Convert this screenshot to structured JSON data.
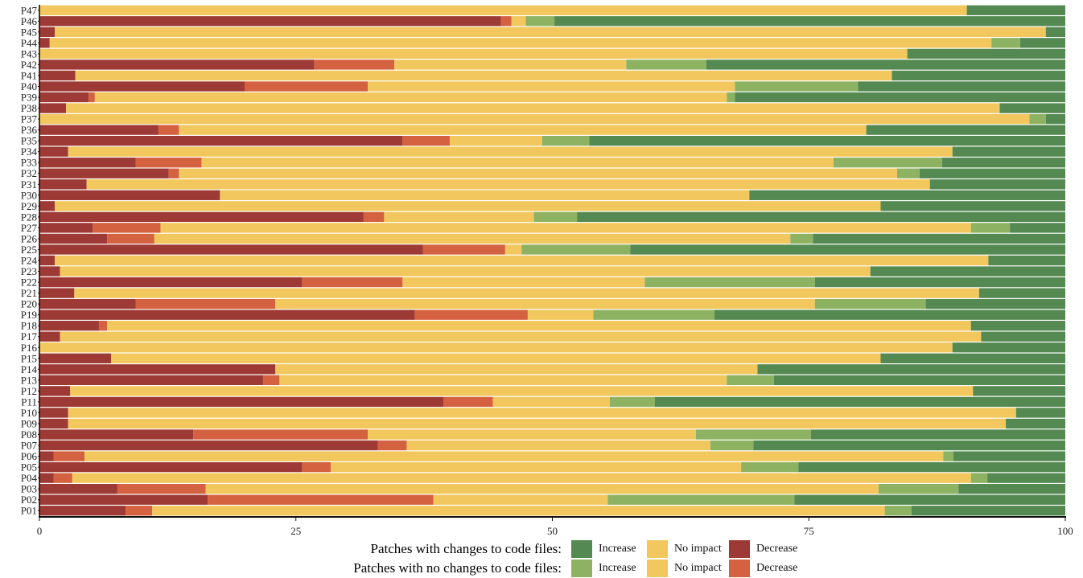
{
  "chart_data": {
    "type": "bar",
    "orientation": "horizontal",
    "stacked": true,
    "xlim": [
      0,
      100
    ],
    "x_ticks": [
      "0",
      "25",
      "50",
      "75",
      "100"
    ],
    "categories": [
      "P01",
      "P02",
      "P03",
      "P04",
      "P05",
      "P06",
      "P07",
      "P08",
      "P09",
      "P10",
      "P11",
      "P12",
      "P13",
      "P14",
      "P15",
      "P16",
      "P17",
      "P18",
      "P19",
      "P20",
      "P21",
      "P22",
      "P23",
      "P24",
      "P25",
      "P26",
      "P27",
      "P28",
      "P29",
      "P30",
      "P31",
      "P32",
      "P33",
      "P34",
      "P35",
      "P36",
      "P37",
      "P38",
      "P39",
      "P40",
      "P41",
      "P42",
      "P43",
      "P44",
      "P45",
      "P46",
      "P47"
    ],
    "series": [
      {
        "name": "Decrease",
        "group": "code",
        "color": "#9e3a35",
        "values": [
          8.4,
          16.4,
          7.6,
          1.4,
          25.6,
          1.4,
          33.0,
          15.0,
          2.8,
          2.8,
          39.4,
          3.0,
          21.8,
          23.0,
          7.0,
          0.0,
          2.0,
          5.8,
          36.6,
          9.4,
          3.4,
          25.6,
          2.0,
          1.5,
          37.4,
          6.6,
          5.2,
          31.6,
          1.5,
          17.6,
          4.6,
          12.6,
          9.4,
          2.8,
          35.4,
          11.6,
          0.0,
          2.6,
          4.8,
          20.0,
          3.5,
          26.8,
          0.0,
          1.0,
          1.5,
          45.0,
          0.0
        ]
      },
      {
        "name": "Decrease",
        "group": "nocode",
        "color": "#d4613f",
        "values": [
          2.6,
          22.0,
          8.6,
          1.8,
          2.8,
          3.0,
          2.8,
          17.0,
          0.0,
          0.0,
          4.8,
          0.0,
          1.6,
          0.0,
          0.0,
          0.0,
          0.0,
          0.8,
          11.0,
          13.6,
          0.0,
          9.8,
          0.0,
          0.0,
          8.0,
          4.6,
          6.6,
          2.0,
          0.0,
          0.0,
          0.0,
          1.0,
          6.4,
          0.0,
          4.6,
          2.0,
          0.0,
          0.0,
          0.6,
          12.0,
          0.0,
          7.8,
          0.0,
          0.0,
          0.0,
          1.0,
          0.0
        ]
      },
      {
        "name": "No impact",
        "group": "code",
        "color": "#f2c85e",
        "values": [
          71.4,
          17.0,
          65.6,
          87.6,
          40.0,
          83.7,
          29.6,
          32.0,
          91.4,
          92.4,
          11.4,
          88.0,
          43.6,
          47.0,
          75.0,
          89.0,
          89.8,
          84.2,
          6.4,
          52.6,
          88.2,
          23.6,
          79.0,
          91.0,
          1.6,
          62.0,
          79.0,
          14.6,
          80.5,
          51.6,
          82.2,
          70.0,
          61.6,
          86.2,
          9.0,
          67.0,
          96.5,
          91.0,
          61.6,
          35.8,
          79.6,
          22.6,
          84.6,
          91.8,
          96.6,
          1.4,
          90.4
        ]
      },
      {
        "name": "No impact",
        "group": "nocode",
        "color": "#f2c85e",
        "values": [
          0,
          0,
          0,
          0,
          0,
          0,
          0,
          0,
          0,
          0,
          0,
          0,
          0,
          0,
          0,
          0,
          0,
          0,
          0,
          0,
          0,
          0,
          0,
          0,
          0,
          0,
          0,
          0,
          0,
          0,
          0,
          0,
          0,
          0,
          0,
          0,
          0,
          0,
          0,
          0,
          0,
          0,
          0,
          0,
          0,
          0,
          0
        ]
      },
      {
        "name": "Increase",
        "group": "nocode",
        "color": "#8db362",
        "values": [
          2.6,
          18.2,
          7.8,
          1.6,
          5.6,
          1.0,
          4.2,
          11.2,
          0.0,
          0.0,
          4.4,
          0.0,
          4.6,
          0.0,
          0.0,
          0.0,
          0.0,
          0.0,
          11.8,
          10.8,
          0.0,
          16.6,
          0.0,
          0.0,
          10.6,
          2.2,
          3.8,
          4.2,
          0.0,
          0.0,
          0.0,
          2.2,
          10.6,
          0.0,
          4.6,
          0.0,
          1.6,
          0.0,
          0.8,
          12.0,
          0.0,
          7.8,
          0.0,
          2.8,
          0.0,
          2.8,
          0.0
        ]
      },
      {
        "name": "Increase",
        "group": "code",
        "color": "#548a52",
        "values": [
          15.0,
          26.4,
          10.4,
          7.6,
          26.0,
          10.9,
          30.4,
          24.8,
          5.8,
          4.8,
          40.0,
          9.0,
          28.4,
          30.0,
          18.0,
          11.0,
          8.2,
          9.2,
          34.2,
          13.6,
          8.4,
          24.4,
          19.0,
          7.5,
          42.4,
          24.6,
          5.4,
          47.6,
          18.0,
          30.8,
          13.2,
          14.2,
          12.0,
          11.0,
          46.4,
          19.4,
          1.9,
          6.4,
          32.2,
          20.2,
          16.9,
          35.0,
          15.4,
          4.4,
          1.9,
          49.8,
          9.6
        ]
      }
    ],
    "legend": {
      "rows": [
        {
          "title": "Patches with changes to code files:",
          "items": [
            {
              "label": "Increase",
              "color": "#548a52"
            },
            {
              "label": "No impact",
              "color": "#f2c85e"
            },
            {
              "label": "Decrease",
              "color": "#9e3a35"
            }
          ]
        },
        {
          "title": "Patches with no changes to code files:",
          "items": [
            {
              "label": "Increase",
              "color": "#8db362"
            },
            {
              "label": "No impact",
              "color": "#f2c85e"
            },
            {
              "label": "Decrease",
              "color": "#d4613f"
            }
          ]
        }
      ],
      "placement": "bottom"
    },
    "grid": false
  }
}
